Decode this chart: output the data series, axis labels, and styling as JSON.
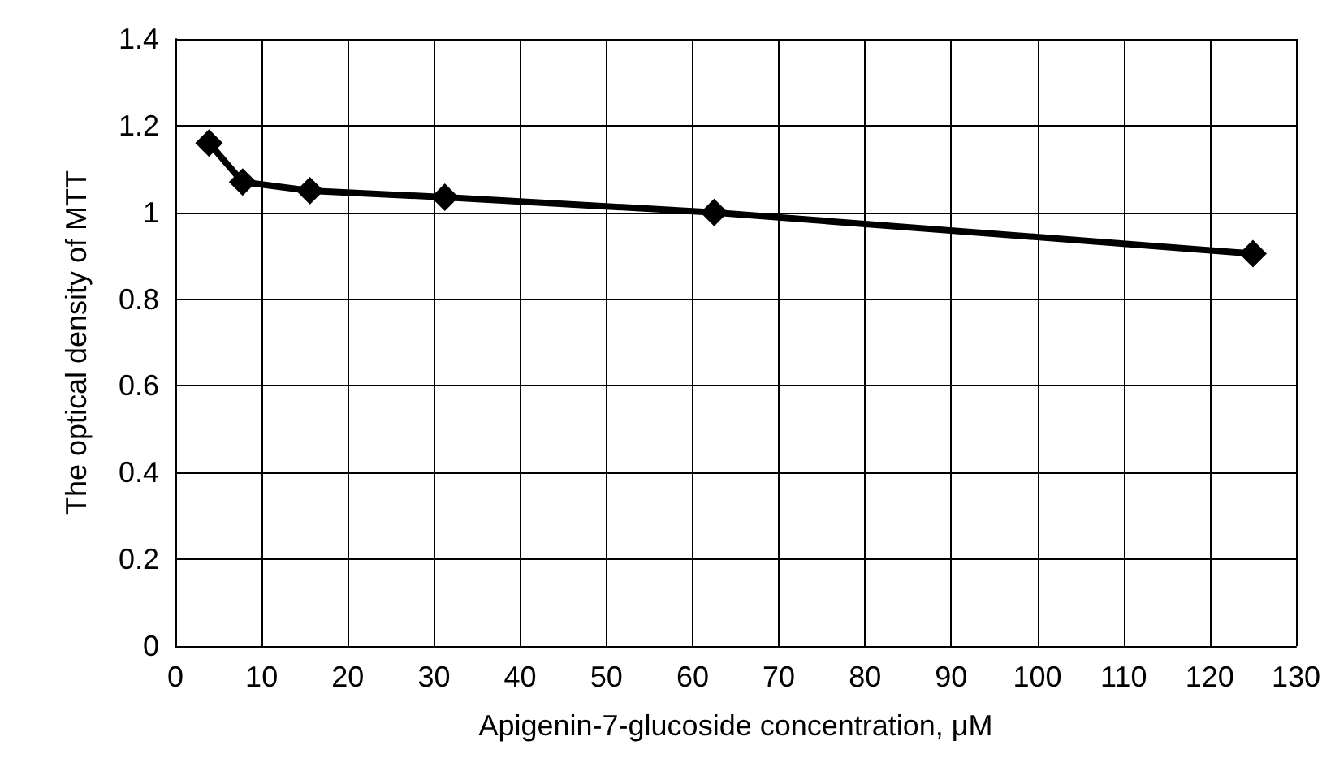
{
  "chart_data": {
    "type": "line",
    "xlabel": "Apigenin-7-glucoside concentration, μM",
    "ylabel": "The optical density of MTT",
    "x": [
      3.9,
      7.8,
      15.6,
      31.25,
      62.5,
      125
    ],
    "series": [
      {
        "color": "#000000",
        "values": [
          1.16,
          1.07,
          1.05,
          1.035,
          1.0,
          0.905
        ]
      }
    ],
    "xlim": [
      0,
      130
    ],
    "xticks": [
      0,
      10,
      20,
      30,
      40,
      50,
      60,
      70,
      80,
      90,
      100,
      110,
      120,
      130
    ],
    "ylim": [
      0,
      1.4
    ],
    "yticks": [
      0,
      0.2,
      0.4,
      0.6,
      0.8,
      1,
      1.2,
      1.4
    ],
    "grid": true,
    "marker": "diamond",
    "line_style": "solid"
  }
}
